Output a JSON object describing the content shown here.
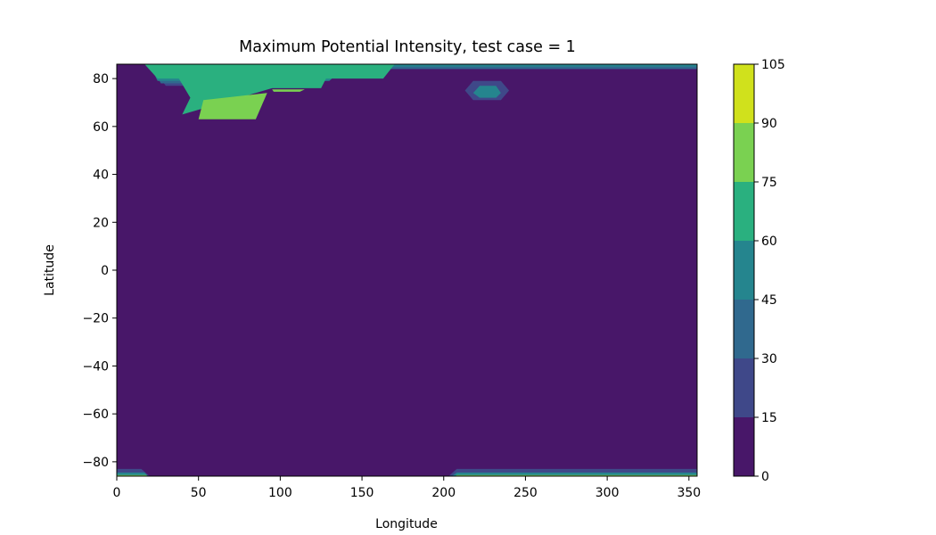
{
  "chart_data": {
    "type": "contourf",
    "title": "Maximum Potential Intensity, test case = 1",
    "xlabel": "Longitude",
    "ylabel": "Latitude",
    "xlim": [
      0,
      355
    ],
    "ylim": [
      -86,
      86
    ],
    "xticks": [
      {
        "value": 0,
        "label": "0"
      },
      {
        "value": 50,
        "label": "50"
      },
      {
        "value": 100,
        "label": "100"
      },
      {
        "value": 150,
        "label": "150"
      },
      {
        "value": 200,
        "label": "200"
      },
      {
        "value": 250,
        "label": "250"
      },
      {
        "value": 300,
        "label": "300"
      },
      {
        "value": 350,
        "label": "350"
      }
    ],
    "yticks": [
      {
        "value": 80,
        "label": "80"
      },
      {
        "value": 60,
        "label": "60"
      },
      {
        "value": 40,
        "label": "40"
      },
      {
        "value": 20,
        "label": "20"
      },
      {
        "value": 0,
        "label": "0"
      },
      {
        "value": -20,
        "label": "−20"
      },
      {
        "value": -40,
        "label": "−40"
      },
      {
        "value": -60,
        "label": "−60"
      },
      {
        "value": -80,
        "label": "−80"
      }
    ],
    "colorbar": {
      "levels": [
        0,
        15,
        30,
        45,
        60,
        75,
        90,
        105
      ],
      "labels": [
        "0",
        "15",
        "30",
        "45",
        "60",
        "75",
        "90",
        "105"
      ],
      "colors": [
        "#481769",
        "#3f4889",
        "#30698e",
        "#25858e",
        "#2ab07f",
        "#7ad151",
        "#d0e11c"
      ]
    },
    "background_level_index": 0,
    "regions": [
      {
        "level_index": 1,
        "polygon": [
          [
            0,
            86
          ],
          [
            20,
            86
          ],
          [
            30,
            77
          ],
          [
            120,
            77
          ],
          [
            130,
            82
          ],
          [
            165,
            84
          ],
          [
            355,
            84
          ],
          [
            355,
            86
          ]
        ]
      },
      {
        "level_index": 2,
        "polygon": [
          [
            0,
            86
          ],
          [
            20,
            86
          ],
          [
            27,
            78
          ],
          [
            125,
            78
          ],
          [
            130,
            82
          ],
          [
            165,
            84
          ],
          [
            355,
            84
          ],
          [
            355,
            86
          ]
        ]
      },
      {
        "level_index": 3,
        "polygon": [
          [
            0,
            86
          ],
          [
            20,
            86
          ],
          [
            25,
            79
          ],
          [
            130,
            79
          ],
          [
            135,
            82
          ],
          [
            170,
            85
          ],
          [
            355,
            85
          ],
          [
            355,
            86
          ]
        ]
      },
      {
        "level_index": 4,
        "polygon": [
          [
            17,
            86
          ],
          [
            170,
            86
          ],
          [
            163,
            80
          ],
          [
            128,
            80
          ],
          [
            125,
            76
          ],
          [
            95,
            76
          ],
          [
            40,
            65
          ],
          [
            45,
            72
          ],
          [
            38,
            80
          ],
          [
            25,
            80
          ]
        ]
      },
      {
        "level_index": 5,
        "polygon": [
          [
            50,
            63
          ],
          [
            85,
            63
          ],
          [
            92,
            74
          ],
          [
            53,
            71
          ]
        ]
      },
      {
        "level_index": 5,
        "polygon": [
          [
            95,
            75.5
          ],
          [
            115,
            75.5
          ],
          [
            112,
            74.5
          ],
          [
            96,
            74.5
          ]
        ]
      },
      {
        "level_index": 1,
        "polygon": [
          [
            213,
            75
          ],
          [
            218,
            79
          ],
          [
            235,
            79
          ],
          [
            240,
            75
          ],
          [
            235,
            71
          ],
          [
            218,
            71
          ]
        ]
      },
      {
        "level_index": 3,
        "polygon": [
          [
            218,
            74
          ],
          [
            222,
            77
          ],
          [
            232,
            77
          ],
          [
            235,
            74
          ],
          [
            232,
            72
          ],
          [
            222,
            72
          ]
        ]
      },
      {
        "level_index": 1,
        "polygon": [
          [
            0,
            -86
          ],
          [
            0,
            -83
          ],
          [
            15,
            -83
          ],
          [
            20,
            -86
          ]
        ]
      },
      {
        "level_index": 1,
        "polygon": [
          [
            203,
            -86
          ],
          [
            208,
            -83
          ],
          [
            355,
            -83
          ],
          [
            355,
            -86
          ]
        ]
      },
      {
        "level_index": 3,
        "polygon": [
          [
            0,
            -86
          ],
          [
            0,
            -84.5
          ],
          [
            17,
            -84.5
          ],
          [
            19,
            -86
          ]
        ]
      },
      {
        "level_index": 3,
        "polygon": [
          [
            205,
            -86
          ],
          [
            208,
            -84.5
          ],
          [
            355,
            -84.5
          ],
          [
            355,
            -86
          ]
        ]
      },
      {
        "level_index": 5,
        "polygon": [
          [
            0,
            -86
          ],
          [
            0,
            -85.5
          ],
          [
            18,
            -85.5
          ],
          [
            19,
            -86
          ]
        ]
      },
      {
        "level_index": 5,
        "polygon": [
          [
            207,
            -86
          ],
          [
            208,
            -85.5
          ],
          [
            355,
            -85.5
          ],
          [
            355,
            -86
          ]
        ]
      }
    ]
  }
}
